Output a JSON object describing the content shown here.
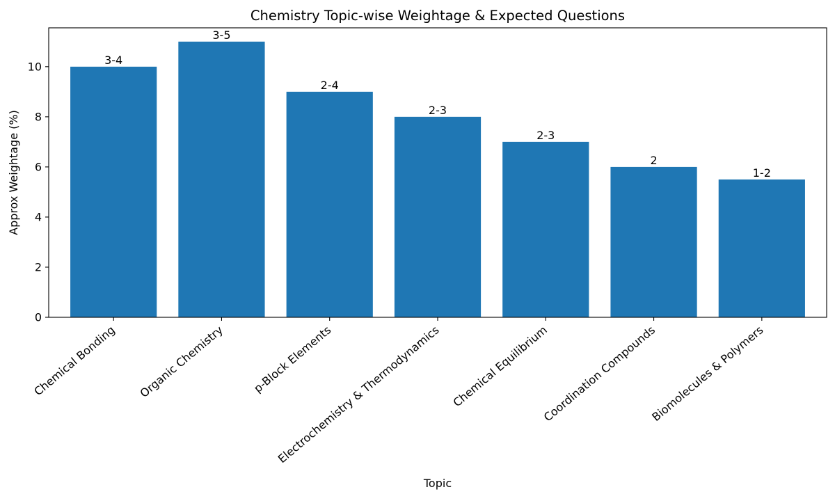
{
  "chart_data": {
    "type": "bar",
    "title": "Chemistry Topic-wise Weightage & Expected Questions",
    "xlabel": "Topic",
    "ylabel": "Approx Weightage (%)",
    "categories": [
      "Chemical Bonding",
      "Organic Chemistry",
      "p-Block Elements",
      "Electrochemistry & Thermodynamics",
      "Chemical Equilibrium",
      "Coordination Compounds",
      "Biomolecules & Polymers"
    ],
    "values": [
      10,
      11,
      9,
      8,
      7,
      6,
      5.5
    ],
    "data_labels": [
      "3-4",
      "3-5",
      "2-4",
      "2-3",
      "2-3",
      "2",
      "1-2"
    ],
    "ylim": [
      0,
      11.55
    ],
    "yticks": [
      0,
      2,
      4,
      6,
      8,
      10
    ],
    "grid": false,
    "legend": "none",
    "bar_color": "#1f77b4"
  }
}
